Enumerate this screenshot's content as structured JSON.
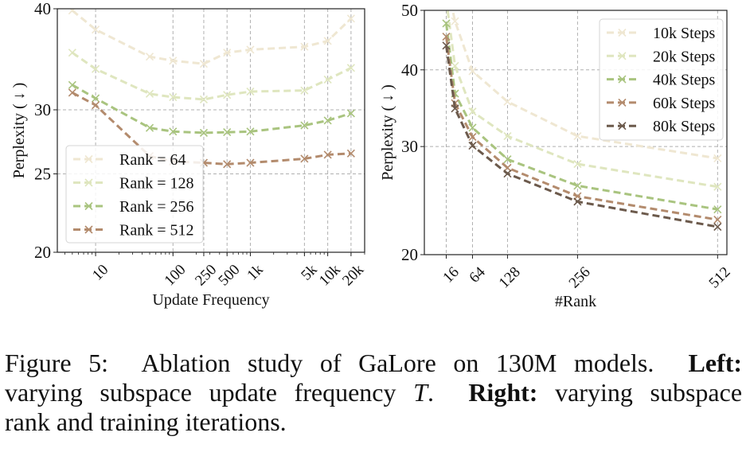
{
  "chart_data": [
    {
      "type": "line",
      "xlabel": "Update Frequency",
      "ylabel": "Perplexity ( ↓ )",
      "xscale": "log",
      "yscale": "log",
      "xlim": [
        3.2,
        30000
      ],
      "ylim": [
        20,
        40
      ],
      "yticks": [
        20,
        25,
        30,
        40
      ],
      "ytick_labels": [
        "20",
        "25",
        "30",
        "40"
      ],
      "xticks": [
        10,
        100,
        250,
        500,
        1000,
        5000,
        10000,
        20000
      ],
      "xtick_labels": [
        "10",
        "100",
        "250",
        "500",
        "1k",
        "5k",
        "10k",
        "20k"
      ],
      "grid": true,
      "legend_position": "lower-left",
      "x": [
        5,
        10,
        50,
        100,
        250,
        500,
        1000,
        5000,
        10000,
        20000
      ],
      "series": [
        {
          "name": "Rank = 64",
          "color": "#efe7d2",
          "values": [
            39.8,
            37.7,
            34.9,
            34.5,
            34.2,
            35.3,
            35.6,
            35.9,
            36.5,
            38.9
          ]
        },
        {
          "name": "Rank = 128",
          "color": "#dfe6bf",
          "values": [
            35.3,
            33.7,
            31.4,
            31.1,
            30.9,
            31.3,
            31.6,
            31.7,
            32.7,
            33.8
          ]
        },
        {
          "name": "Rank = 256",
          "color": "#a9c47f",
          "values": [
            32.2,
            31.0,
            28.5,
            28.2,
            28.1,
            28.15,
            28.2,
            28.7,
            29.1,
            29.7
          ]
        },
        {
          "name": "Rank = 512",
          "color": "#b38b6d",
          "values": [
            31.5,
            30.4,
            26.3,
            25.9,
            25.8,
            25.7,
            25.8,
            26.1,
            26.4,
            26.5
          ]
        }
      ]
    },
    {
      "type": "line",
      "xlabel": "#Rank",
      "ylabel": "Perplexity ( ↓ )",
      "xscale": "linear",
      "yscale": "log",
      "xlim": [
        -24,
        529
      ],
      "ylim": [
        20,
        50
      ],
      "yticks": [
        20,
        30,
        40,
        50
      ],
      "ytick_labels": [
        "20",
        "30",
        "40",
        "50"
      ],
      "xticks": [
        16,
        64,
        128,
        256,
        512
      ],
      "xtick_labels": [
        "16",
        "64",
        "128",
        "256",
        "512"
      ],
      "grid": true,
      "legend_position": "upper-right",
      "x": [
        16,
        32,
        64,
        128,
        256,
        512
      ],
      "series": [
        {
          "name": "10k Steps",
          "color": "#efe7d2",
          "values": [
            56,
            48.0,
            39.8,
            35.5,
            31.2,
            28.7
          ]
        },
        {
          "name": "20k Steps",
          "color": "#dfe6bf",
          "values": [
            52,
            40.6,
            34.2,
            31.2,
            28.1,
            25.8
          ]
        },
        {
          "name": "40k Steps",
          "color": "#a9c47f",
          "values": [
            47.6,
            36.6,
            32.2,
            28.6,
            25.9,
            23.7
          ]
        },
        {
          "name": "60k Steps",
          "color": "#b38b6d",
          "values": [
            45.3,
            35.3,
            31.1,
            27.7,
            24.9,
            22.8
          ]
        },
        {
          "name": "80k Steps",
          "color": "#6c5a4c",
          "values": [
            43.8,
            34.6,
            30.1,
            27.1,
            24.4,
            22.2
          ]
        }
      ]
    }
  ],
  "caption": {
    "figure_label": "Figure 5:",
    "line1_text": "Ablation study of GaLore on 130M models.",
    "left_label": "Left:",
    "left_text": "varying subspace update frequency",
    "left_symbol": "T",
    "left_end": ".",
    "right_label": "Right:",
    "right_text_a": "varying subspace",
    "right_text_b": "rank and training iterations."
  }
}
